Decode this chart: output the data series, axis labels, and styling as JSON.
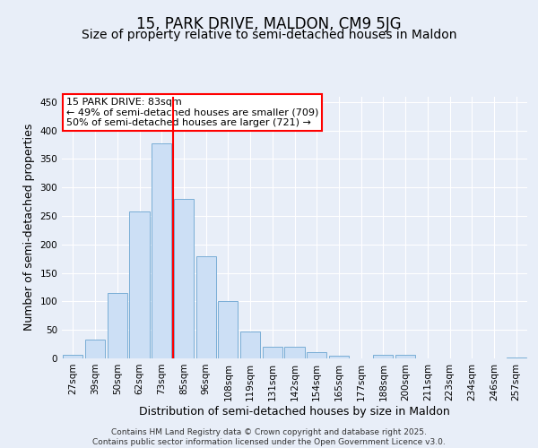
{
  "title": "15, PARK DRIVE, MALDON, CM9 5JG",
  "subtitle": "Size of property relative to semi-detached houses in Maldon",
  "xlabel": "Distribution of semi-detached houses by size in Maldon",
  "ylabel": "Number of semi-detached properties",
  "categories": [
    "27sqm",
    "39sqm",
    "50sqm",
    "62sqm",
    "73sqm",
    "85sqm",
    "96sqm",
    "108sqm",
    "119sqm",
    "131sqm",
    "142sqm",
    "154sqm",
    "165sqm",
    "177sqm",
    "188sqm",
    "200sqm",
    "211sqm",
    "223sqm",
    "234sqm",
    "246sqm",
    "257sqm"
  ],
  "values": [
    7,
    33,
    115,
    258,
    378,
    280,
    180,
    100,
    47,
    20,
    20,
    11,
    5,
    0,
    7,
    7,
    0,
    0,
    0,
    0,
    2
  ],
  "bar_color": "#ccdff5",
  "bar_edge_color": "#7aaed6",
  "vline_x": 4.5,
  "vline_color": "red",
  "annotation_text": "15 PARK DRIVE: 83sqm\n← 49% of semi-detached houses are smaller (709)\n50% of semi-detached houses are larger (721) →",
  "annotation_box_color": "white",
  "annotation_box_edge_color": "red",
  "footer_text": "Contains HM Land Registry data © Crown copyright and database right 2025.\nContains public sector information licensed under the Open Government Licence v3.0.",
  "background_color": "#e8eef8",
  "plot_background_color": "#e8eef8",
  "ylim": [
    0,
    460
  ],
  "yticks": [
    0,
    50,
    100,
    150,
    200,
    250,
    300,
    350,
    400,
    450
  ],
  "grid_color": "#ffffff",
  "title_fontsize": 12,
  "subtitle_fontsize": 10,
  "axis_label_fontsize": 9,
  "tick_fontsize": 7.5,
  "annotation_fontsize": 8,
  "footer_fontsize": 6.5
}
